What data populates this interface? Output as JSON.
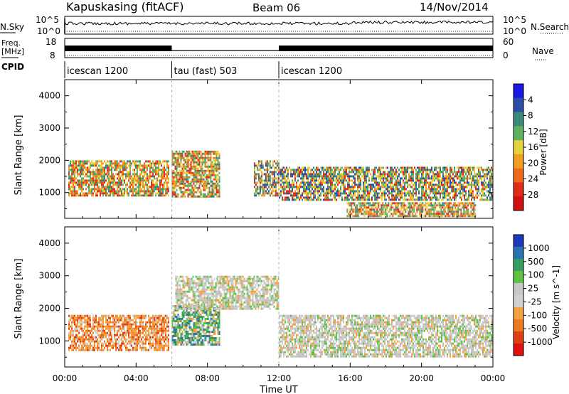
{
  "header": {
    "station": "Kapuskasing (fitACF)",
    "beam": "Beam 06",
    "date": "14/Nov/2014"
  },
  "noise_panel": {
    "left_label": "N.Sky",
    "right_label": "N.Search",
    "tick_top": "10^5",
    "tick_bottom": "10^0"
  },
  "freq_panel": {
    "label_line1": "Freq.",
    "label_line2": "[MHz]",
    "right_label": "Nave",
    "tick_left_top": "18",
    "tick_left_bottom": "8",
    "tick_right_top": "60",
    "tick_right_bottom": "0"
  },
  "cpid": {
    "label": "CPID",
    "segments": [
      {
        "label": "icescan 1200",
        "start": 0,
        "end": 6
      },
      {
        "label": "tau (fast) 503",
        "start": 6,
        "end": 12
      },
      {
        "label": "icescan 1200",
        "start": 12,
        "end": 24
      }
    ]
  },
  "colors": {
    "frame": "#000000",
    "background": "#ffffff"
  },
  "chart_data": [
    {
      "type": "heatmap",
      "parameter": "power",
      "ylabel": "Slant Range [km]",
      "ylim": [
        200,
        4500
      ],
      "yticks": [
        "1000",
        "2000",
        "3000",
        "4000"
      ],
      "xlim": [
        "00:00",
        "24:00"
      ],
      "colorbar": {
        "label": "Power [dB]",
        "ticks": [
          "4",
          "8",
          "12",
          "16",
          "20",
          "24",
          "28"
        ],
        "colors": [
          "#1a1ae6",
          "#2b4fa8",
          "#3a8a7a",
          "#5fb060",
          "#e6d23a",
          "#f0a020",
          "#f06a1e",
          "#e02a1a",
          "#d01010"
        ]
      },
      "regions": [
        {
          "t0": 0.2,
          "t1": 5.8,
          "r0": 900,
          "r1": 2000,
          "level": "high"
        },
        {
          "t0": 6.0,
          "t1": 8.7,
          "r0": 900,
          "r1": 2300,
          "level": "high"
        },
        {
          "t0": 10.6,
          "t1": 12.0,
          "r0": 900,
          "r1": 2000,
          "level": "medium"
        },
        {
          "t0": 12.0,
          "t1": 24.0,
          "r0": 800,
          "r1": 1800,
          "level": "medium"
        },
        {
          "t0": 15.8,
          "t1": 23.0,
          "r0": 300,
          "r1": 700,
          "level": "high"
        }
      ]
    },
    {
      "type": "heatmap",
      "parameter": "velocity",
      "ylabel": "Slant Range [km]",
      "xlabel": "Time UT",
      "ylim": [
        200,
        4500
      ],
      "yticks": [
        "1000",
        "2000",
        "3000",
        "4000"
      ],
      "xticks": [
        "00:00",
        "04:00",
        "08:00",
        "12:00",
        "16:00",
        "20:00",
        "00:00"
      ],
      "colorbar": {
        "label": "Velocity [m s^-1]",
        "ticks": [
          "1000",
          "500",
          "100",
          "25",
          "-25",
          "-100",
          "-500",
          "-1000"
        ],
        "colors": [
          "#1a3ab8",
          "#2a72b0",
          "#34a060",
          "#5cc440",
          "#c8c8c8",
          "#d0d0d0",
          "#f5a040",
          "#f07a20",
          "#e04010",
          "#e01010"
        ]
      },
      "regions": [
        {
          "t0": 0.2,
          "t1": 5.8,
          "r0": 700,
          "r1": 1800,
          "level": "negative"
        },
        {
          "t0": 6.0,
          "t1": 8.7,
          "r0": 900,
          "r1": 2100,
          "level": "positive"
        },
        {
          "t0": 6.2,
          "t1": 12.0,
          "r0": 2000,
          "r1": 3000,
          "level": "near-zero"
        },
        {
          "t0": 12.0,
          "t1": 24.0,
          "r0": 500,
          "r1": 1800,
          "level": "near-zero"
        }
      ]
    }
  ]
}
